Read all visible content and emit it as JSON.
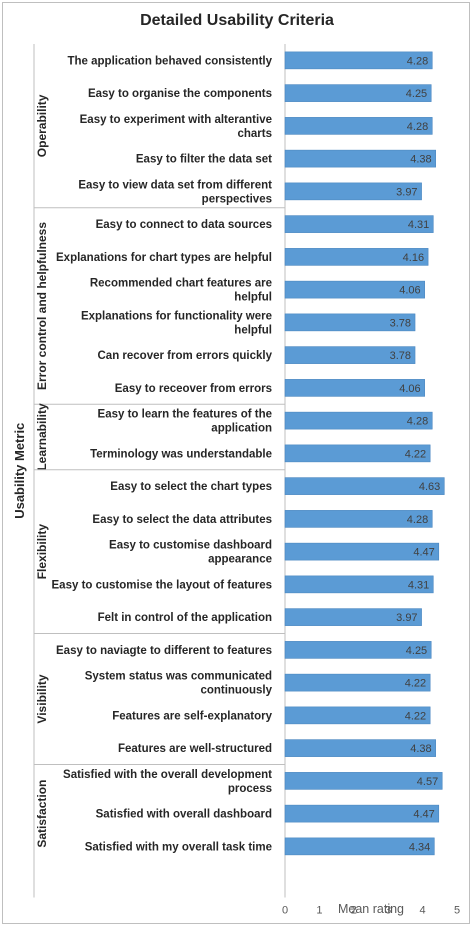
{
  "chart_data": {
    "type": "bar",
    "orientation": "horizontal",
    "title": "Detailed Usability Criteria",
    "xlabel": "Mean rating",
    "ylabel": "Usability Metric",
    "xlim": [
      0,
      5
    ],
    "xticks": [
      "0",
      "1",
      "2",
      "3",
      "4",
      "5"
    ],
    "bar_color": "#5b9bd5",
    "groups": [
      {
        "name": "Operability",
        "items": [
          {
            "label": [
              "The application behaved consistently"
            ],
            "value": 4.28
          },
          {
            "label": [
              "Easy to organise the components"
            ],
            "value": 4.25
          },
          {
            "label": [
              "Easy to experiment with alterantive",
              "charts"
            ],
            "value": 4.28
          },
          {
            "label": [
              "Easy to filter the data set"
            ],
            "value": 4.38
          },
          {
            "label": [
              "Easy to view data set from different",
              "perspectives"
            ],
            "value": 3.97
          }
        ]
      },
      {
        "name": "Error control and helpfulness",
        "items": [
          {
            "label": [
              "Easy to connect to data sources"
            ],
            "value": 4.31
          },
          {
            "label": [
              "Explanations for chart types are helpful"
            ],
            "value": 4.16
          },
          {
            "label": [
              "Recommended chart features are",
              "helpful"
            ],
            "value": 4.06
          },
          {
            "label": [
              "Explanations for functionality were",
              "helpful"
            ],
            "value": 3.78
          },
          {
            "label": [
              "Can recover from errors quickly"
            ],
            "value": 3.78
          },
          {
            "label": [
              "Easy to receover from errors"
            ],
            "value": 4.06
          }
        ]
      },
      {
        "name": "Learnability",
        "items": [
          {
            "label": [
              "Easy to learn the features of the",
              "application"
            ],
            "value": 4.28
          },
          {
            "label": [
              "Terminology was understandable"
            ],
            "value": 4.22
          }
        ]
      },
      {
        "name": "Flexibility",
        "items": [
          {
            "label": [
              "Easy to select the chart types"
            ],
            "value": 4.63
          },
          {
            "label": [
              "Easy to select the data attributes"
            ],
            "value": 4.28
          },
          {
            "label": [
              "Easy to customise dashboard",
              "appearance"
            ],
            "value": 4.47
          },
          {
            "label": [
              "Easy to customise the layout of features"
            ],
            "value": 4.31
          },
          {
            "label": [
              "Felt in control of the application"
            ],
            "value": 3.97
          }
        ]
      },
      {
        "name": "Visibility",
        "items": [
          {
            "label": [
              "Easy to naviagte to different to features"
            ],
            "value": 4.25
          },
          {
            "label": [
              "System status was communicated",
              "continuously"
            ],
            "value": 4.22
          },
          {
            "label": [
              "Features are self-explanatory"
            ],
            "value": 4.22
          },
          {
            "label": [
              "Features are well-structured"
            ],
            "value": 4.38
          }
        ]
      },
      {
        "name": "Satisfaction",
        "items": [
          {
            "label": [
              "Satisfied with the overall development",
              "process"
            ],
            "value": 4.57
          },
          {
            "label": [
              "Satisfied with overall dashboard"
            ],
            "value": 4.47
          },
          {
            "label": [
              "Satisfied with my overall task time"
            ],
            "value": 4.34
          }
        ]
      }
    ]
  }
}
